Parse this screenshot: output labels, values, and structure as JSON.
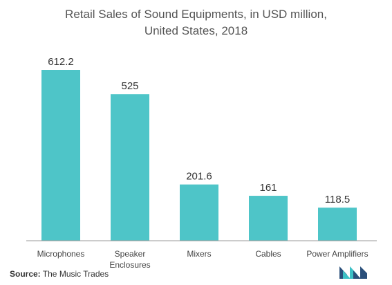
{
  "chart_data": {
    "type": "bar",
    "title_lines": [
      "Retail Sales of Sound Equipments, in USD million,",
      "United States, 2018"
    ],
    "categories": [
      [
        "Microphones"
      ],
      [
        "Speaker",
        "Enclosures"
      ],
      [
        "Mixers"
      ],
      [
        "Cables"
      ],
      [
        "Power Amplifiers"
      ]
    ],
    "values": [
      612.2,
      525,
      201.6,
      161,
      118.5
    ],
    "value_labels": [
      "612.2",
      "525",
      "201.6",
      "161",
      "118.5"
    ],
    "ylim": [
      0,
      612.2
    ],
    "grid": false,
    "bar_color": "#4ec5c8",
    "axis_color": "#999999"
  },
  "source": {
    "label": "Source:",
    "text": " The Music Trades"
  },
  "logo": {
    "icon": "mordor-intelligence-logo",
    "colors": [
      "#2a4f7a",
      "#3cc0c5"
    ]
  }
}
